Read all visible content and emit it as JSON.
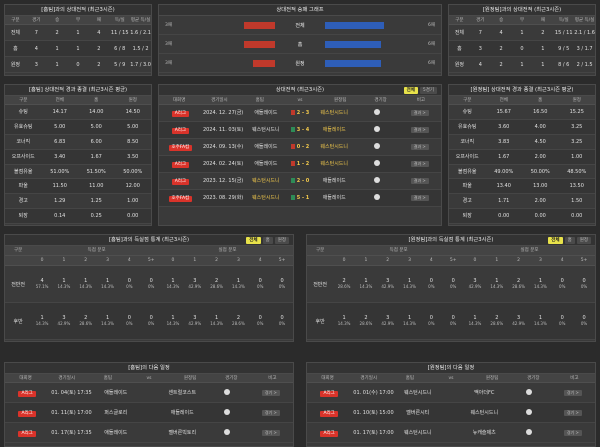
{
  "tl": {
    "title": "[홈팀]과의 상대전적 (최근3시즌)",
    "headers": [
      "구분",
      "경기",
      "승",
      "무",
      "패",
      "득/실",
      "평균 득/실"
    ],
    "rows": [
      [
        "전체",
        "7",
        "2",
        "1",
        "4",
        "11 / 15",
        "1.6 / 2.1"
      ],
      [
        "홈",
        "4",
        "1",
        "1",
        "2",
        "6 / 8",
        "1.5 / 2"
      ],
      [
        "원정",
        "3",
        "1",
        "0",
        "2",
        "5 / 9",
        "1.7 / 3.0"
      ]
    ]
  },
  "tc": {
    "title": "상대전적 승패 그래프",
    "rows": [
      {
        "l": "3패",
        "label": "전체",
        "r": "6패",
        "lv": 0.35,
        "rv": 0.65
      },
      {
        "l": "3패",
        "label": "홈",
        "r": "6패",
        "lv": 0.35,
        "rv": 0.62
      },
      {
        "l": "3패",
        "label": "원정",
        "r": "6패",
        "lv": 0.25,
        "rv": 0.62
      }
    ]
  },
  "tr": {
    "title": "[원정팀]과의 상대전적 (최근3시즌)",
    "headers": [
      "구분",
      "경기",
      "승",
      "무",
      "패",
      "득/실",
      "평균 득/실"
    ],
    "rows": [
      [
        "전체",
        "7",
        "4",
        "1",
        "2",
        "15 / 11",
        "2.1 / 1.6"
      ],
      [
        "홈",
        "3",
        "2",
        "0",
        "1",
        "9 / 5",
        "3 / 1.7"
      ],
      [
        "원정",
        "4",
        "2",
        "1",
        "1",
        "8 / 6",
        "2 / 1.5"
      ]
    ]
  },
  "ml": {
    "title": "[홈팀] 상대전적 경과 종결 (최근3시즌 평균)",
    "headers": [
      "구분",
      "전체",
      "홈",
      "원정"
    ],
    "rows": [
      [
        "슈팅",
        "14.17",
        "14.00",
        "14.50"
      ],
      [
        "유효슈팅",
        "5.00",
        "5.00",
        "5.00"
      ],
      [
        "코너킥",
        "6.83",
        "6.00",
        "8.50"
      ],
      [
        "오프사이드",
        "3.40",
        "1.67",
        "3.50"
      ],
      [
        "볼점유율",
        "51.00%",
        "51.50%",
        "50.00%"
      ],
      [
        "파울",
        "11.50",
        "11.00",
        "12.00"
      ],
      [
        "경고",
        "1.29",
        "1.25",
        "1.00"
      ],
      [
        "퇴장",
        "0.14",
        "0.25",
        "0.00"
      ]
    ]
  },
  "mc": {
    "title": "상대전적 (최근3시즌)",
    "tab_on": "전체",
    "tab_off": "5경기",
    "headers": [
      "대회명",
      "경기일시",
      "홈팀",
      "vs",
      "원정팀",
      "경기장",
      "비고"
    ],
    "rows": [
      {
        "league": "A리그",
        "date": "2024. 12. 27(금)",
        "home": "애들레이드",
        "score": "2 - 3",
        "away": "웨스턴시드니",
        "result": "L",
        "hl": "away"
      },
      {
        "league": "A리그",
        "date": "2024. 11. 03(토)",
        "home": "웨스턴시드니",
        "score": "3 - 4",
        "away": "애들레이드",
        "result": "W",
        "hl": "away"
      },
      {
        "league": "호주FA컵",
        "date": "2024. 09. 13(수)",
        "home": "애들레이드",
        "score": "0 - 2",
        "away": "웨스턴시드니",
        "result": "L",
        "hl": "away"
      },
      {
        "league": "A리그",
        "date": "2024. 02. 24(토)",
        "home": "애들레이드",
        "score": "1 - 2",
        "away": "웨스턴시드니",
        "result": "L",
        "hl": "away"
      },
      {
        "league": "A리그",
        "date": "2023. 12. 15(금)",
        "home": "웨스턴시드니",
        "score": "2 - 0",
        "away": "애들레이드",
        "result": "W",
        "hl": "home"
      },
      {
        "league": "호주FA컵",
        "date": "2023. 08. 29(화)",
        "home": "웨스턴시드니",
        "score": "5 - 1",
        "away": "애들레이드",
        "result": "W",
        "hl": "home"
      }
    ],
    "btn": "결과 >"
  },
  "mr": {
    "title": "[원정팀] 상대전적 경과 종결 (최근3시즌 평균)",
    "headers": [
      "구분",
      "전체",
      "홈",
      "원정"
    ],
    "rows": [
      [
        "슈팅",
        "15.67",
        "16.50",
        "15.25"
      ],
      [
        "유효슈팅",
        "3.60",
        "4.00",
        "3.25"
      ],
      [
        "코너킥",
        "3.83",
        "4.50",
        "3.25"
      ],
      [
        "오프사이드",
        "1.67",
        "2.00",
        "1.00"
      ],
      [
        "볼점유율",
        "49.00%",
        "50.00%",
        "48.50%"
      ],
      [
        "파울",
        "13.40",
        "13.00",
        "13.50"
      ],
      [
        "경고",
        "1.71",
        "2.00",
        "1.50"
      ],
      [
        "퇴장",
        "0.00",
        "0.00",
        "0.00"
      ]
    ]
  },
  "gl": {
    "title": "[홈팀]과의 득실점 통계 (최근3시즌)",
    "tabs": [
      "전체",
      "홈",
      "원정"
    ],
    "g1": "득점 분포",
    "g2": "실점 분포",
    "label": "구분",
    "cols": [
      "0",
      "1",
      "2",
      "3",
      "4",
      "5+"
    ],
    "rows": [
      {
        "n": "전반전",
        "a": [
          [
            "4",
            "57.1%"
          ],
          [
            "1",
            "14.3%"
          ],
          [
            "1",
            "14.3%"
          ],
          [
            "1",
            "14.3%"
          ],
          [
            "0",
            "0%"
          ],
          [
            "0",
            "0%"
          ]
        ],
        "b": [
          [
            "1",
            "14.3%"
          ],
          [
            "3",
            "42.9%"
          ],
          [
            "2",
            "28.6%"
          ],
          [
            "1",
            "14.3%"
          ],
          [
            "0",
            "0%"
          ],
          [
            "0",
            "0%"
          ]
        ]
      },
      {
        "n": "후반",
        "a": [
          [
            "1",
            "14.3%"
          ],
          [
            "3",
            "42.9%"
          ],
          [
            "2",
            "28.6%"
          ],
          [
            "1",
            "14.3%"
          ],
          [
            "0",
            "0%"
          ],
          [
            "0",
            "0%"
          ]
        ],
        "b": [
          [
            "1",
            "14.3%"
          ],
          [
            "3",
            "42.9%"
          ],
          [
            "1",
            "14.3%"
          ],
          [
            "2",
            "28.6%"
          ],
          [
            "0",
            "0%"
          ],
          [
            "0",
            "0%"
          ]
        ]
      }
    ]
  },
  "gr": {
    "title": "[원정팀]과의 득실점 통계 (최근3시즌)",
    "tabs": [
      "전체",
      "홈",
      "원정"
    ],
    "g1": "득점 분포",
    "g2": "실점 분포",
    "label": "구분",
    "cols": [
      "0",
      "1",
      "2",
      "3",
      "4",
      "5+"
    ],
    "rows": [
      {
        "n": "전반전",
        "a": [
          [
            "2",
            "28.6%"
          ],
          [
            "1",
            "14.3%"
          ],
          [
            "3",
            "42.9%"
          ],
          [
            "1",
            "14.3%"
          ],
          [
            "0",
            "0%"
          ],
          [
            "0",
            "0%"
          ]
        ],
        "b": [
          [
            "3",
            "42.9%"
          ],
          [
            "1",
            "14.3%"
          ],
          [
            "2",
            "28.6%"
          ],
          [
            "1",
            "14.3%"
          ],
          [
            "0",
            "0%"
          ],
          [
            "0",
            "0%"
          ]
        ]
      },
      {
        "n": "후반",
        "a": [
          [
            "1",
            "14.3%"
          ],
          [
            "2",
            "28.6%"
          ],
          [
            "3",
            "42.9%"
          ],
          [
            "1",
            "14.3%"
          ],
          [
            "0",
            "0%"
          ],
          [
            "0",
            "0%"
          ]
        ],
        "b": [
          [
            "1",
            "14.3%"
          ],
          [
            "2",
            "28.6%"
          ],
          [
            "3",
            "42.9%"
          ],
          [
            "1",
            "14.3%"
          ],
          [
            "0",
            "0%"
          ],
          [
            "0",
            "0%"
          ]
        ]
      }
    ]
  },
  "sl": {
    "title": "[홈팀]의 다음 일정",
    "headers": [
      "대회명",
      "경기일시",
      "홈팀",
      "vs",
      "원정팀",
      "경기장",
      "비고"
    ],
    "btn": "경기 >",
    "rows": [
      [
        "A리그",
        "01. 04(토) 17:35",
        "애들레이드",
        "센트럴코스트"
      ],
      [
        "A리그",
        "01. 11(토) 17:00",
        "퍼스글로리",
        "애들레이드"
      ],
      [
        "A리그",
        "01. 17(토) 17:35",
        "애들레이드",
        "멜버른빅토리"
      ]
    ]
  },
  "sr": {
    "title": "[원정팀]의 다음 일정",
    "headers": [
      "대회명",
      "경기일시",
      "홈팀",
      "vs",
      "원정팀",
      "경기장",
      "비고"
    ],
    "btn": "경기 >",
    "rows": [
      [
        "A리그",
        "01. 01(수) 17:00",
        "웨스턴시드니",
        "맥아더FC"
      ],
      [
        "A리그",
        "01. 10(토) 15:00",
        "멜버른시티",
        "웨스턴시드니"
      ],
      [
        "A리그",
        "01. 17(토) 17:00",
        "웨스턴시드니",
        "뉴캐슬제츠"
      ]
    ]
  }
}
